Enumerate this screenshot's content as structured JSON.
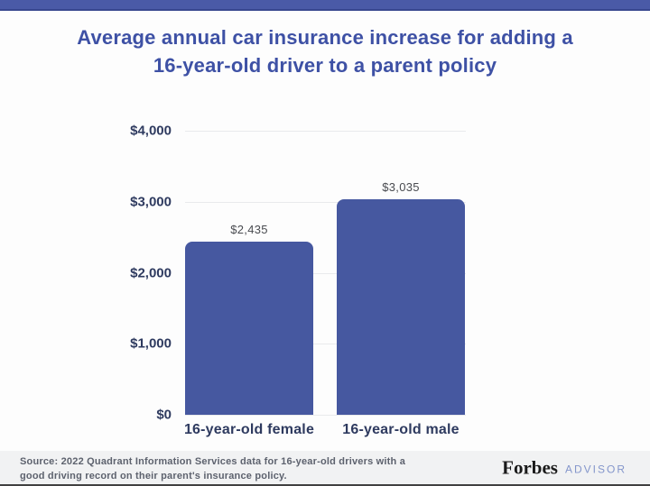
{
  "header": {
    "title_line1": "Average annual car insurance increase for adding a",
    "title_line2": "16-year-old driver to a parent policy"
  },
  "chart_data": {
    "type": "bar",
    "title": "Average annual car insurance increase for adding a 16-year-old driver to a parent policy",
    "categories": [
      "16-year-old female",
      "16-year-old male"
    ],
    "values": [
      2435,
      3035
    ],
    "value_labels": [
      "$2,435",
      "$3,035"
    ],
    "xlabel": "",
    "ylabel": "",
    "ylim": [
      0,
      4000
    ],
    "y_ticks": [
      {
        "label": "$4,000",
        "value": 4000
      },
      {
        "label": "$3,000",
        "value": 3000
      },
      {
        "label": "$2,000",
        "value": 2000
      },
      {
        "label": "$1,000",
        "value": 1000
      },
      {
        "label": "$0",
        "value": 0
      }
    ],
    "grid": "horizontal",
    "legend": "none",
    "bar_color": "#4658a0"
  },
  "colors": {
    "accent_bar": "#4a5aa7",
    "title_text": "#3e51a5",
    "axis_text": "#2e3a5f",
    "bar_fill": "#4658a0",
    "advisor_wordmark": "#8496cb"
  },
  "footer": {
    "source_line1": "Source: 2022 Quadrant Information Services data for 16-year-old drivers with a",
    "source_line2": "good driving record on their parent's insurance policy.",
    "brand": "Forbes",
    "brand_suffix": "ADVISOR"
  }
}
